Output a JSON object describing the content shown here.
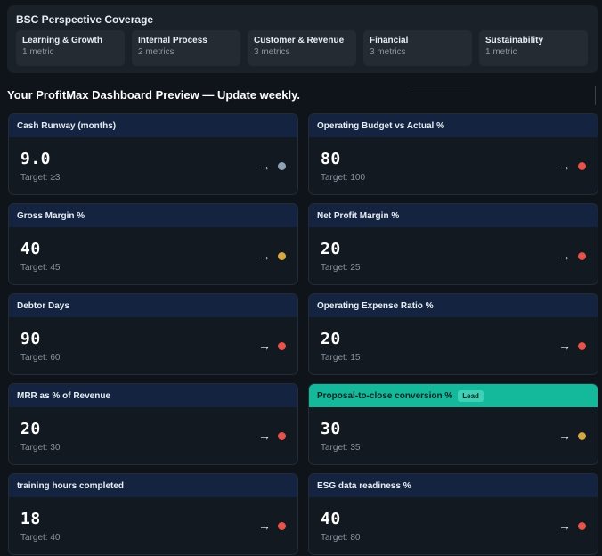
{
  "coverage": {
    "title": "BSC Perspective Coverage",
    "perspectives": [
      {
        "name": "Learning & Growth",
        "count": "1 metric"
      },
      {
        "name": "Internal Process",
        "count": "2 metrics"
      },
      {
        "name": "Customer & Revenue",
        "count": "3 metrics"
      },
      {
        "name": "Financial",
        "count": "3 metrics"
      },
      {
        "name": "Sustainability",
        "count": "1 metric"
      }
    ]
  },
  "headline": "Your ProfitMax Dashboard Preview — Update weekly.",
  "status_colors": {
    "neutral": "#8fa1b3",
    "warning": "#d4a843",
    "critical": "#e5534b"
  },
  "metrics": [
    {
      "title": "Cash Runway (months)",
      "value": "9.0",
      "target": "Target: ≥3",
      "trend": "→",
      "status": "neutral"
    },
    {
      "title": "Operating Budget vs Actual %",
      "value": "80",
      "target": "Target: 100",
      "trend": "→",
      "status": "critical"
    },
    {
      "title": "Gross Margin %",
      "value": "40",
      "target": "Target: 45",
      "trend": "→",
      "status": "warning"
    },
    {
      "title": "Net Profit Margin %",
      "value": "20",
      "target": "Target: 25",
      "trend": "→",
      "status": "critical"
    },
    {
      "title": "Debtor Days",
      "value": "90",
      "target": "Target: 60",
      "trend": "→",
      "status": "critical"
    },
    {
      "title": "Operating Expense Ratio %",
      "value": "20",
      "target": "Target: 15",
      "trend": "→",
      "status": "critical"
    },
    {
      "title": "MRR as % of Revenue",
      "value": "20",
      "target": "Target: 30",
      "trend": "→",
      "status": "critical"
    },
    {
      "title": "Proposal-to-close conversion %",
      "value": "30",
      "target": "Target: 35",
      "trend": "→",
      "status": "warning",
      "badge": "Lead"
    },
    {
      "title": "training hours completed",
      "value": "18",
      "target": "Target: 40",
      "trend": "→",
      "status": "critical"
    },
    {
      "title": "ESG data readiness %",
      "value": "40",
      "target": "Target: 80",
      "trend": "→",
      "status": "critical"
    }
  ]
}
